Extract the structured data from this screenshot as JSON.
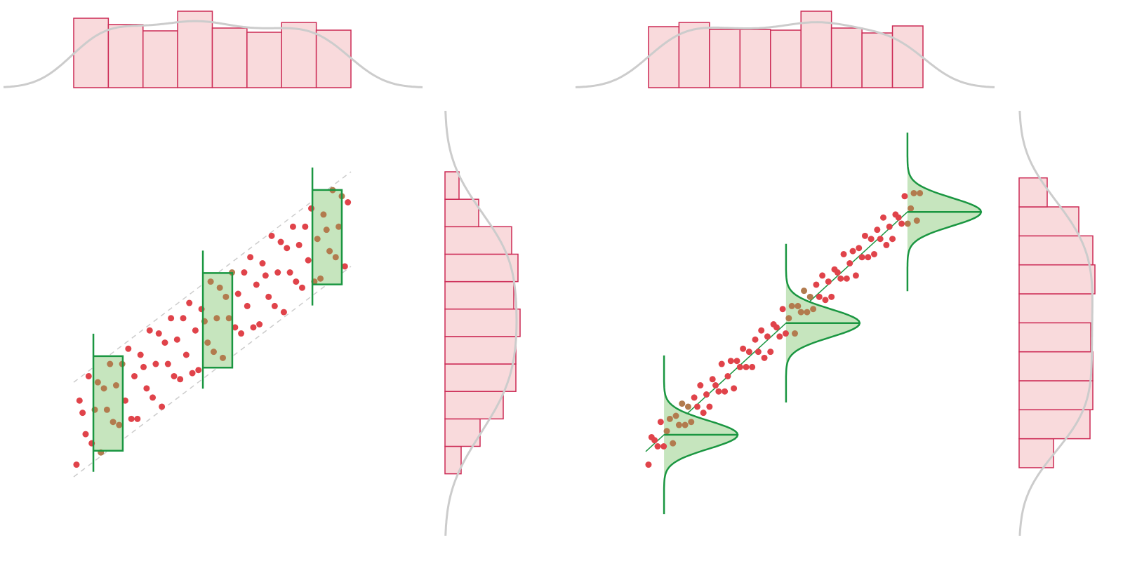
{
  "chart_data": [
    {
      "type": "scatter",
      "distribution": "uniform",
      "xlim": [
        0,
        10
      ],
      "ylim": [
        0,
        10
      ],
      "x": [
        0.1,
        0.21,
        0.32,
        0.43,
        0.54,
        0.65,
        0.76,
        0.87,
        0.98,
        1.09,
        1.2,
        1.31,
        1.42,
        1.53,
        1.64,
        1.75,
        1.86,
        1.97,
        2.08,
        2.19,
        2.3,
        2.41,
        2.52,
        2.63,
        2.74,
        2.85,
        2.96,
        3.07,
        3.18,
        3.29,
        3.4,
        3.51,
        3.62,
        3.73,
        3.84,
        3.95,
        4.06,
        4.17,
        4.28,
        4.39,
        4.5,
        4.61,
        4.72,
        4.83,
        4.94,
        5.05,
        5.16,
        5.27,
        5.38,
        5.49,
        5.6,
        5.71,
        5.82,
        5.93,
        6.04,
        6.15,
        6.26,
        6.37,
        6.48,
        6.59,
        6.7,
        6.81,
        6.92,
        7.03,
        7.14,
        7.25,
        7.36,
        7.47,
        7.58,
        7.69,
        7.8,
        7.91,
        8.02,
        8.13,
        8.24,
        8.35,
        8.46,
        8.57,
        8.68,
        8.79,
        8.9,
        9.01,
        9.12,
        9.23,
        9.34,
        9.45,
        9.56,
        9.67,
        9.78,
        9.89
      ],
      "y": [
        0.4,
        2.5,
        2.1,
        1.4,
        3.3,
        1.1,
        2.2,
        3.1,
        0.8,
        2.9,
        2.2,
        3.7,
        1.8,
        3.0,
        1.7,
        3.7,
        2.5,
        4.2,
        1.9,
        3.3,
        1.9,
        4.0,
        3.6,
        2.9,
        4.8,
        2.6,
        3.7,
        4.7,
        2.3,
        4.4,
        3.7,
        5.2,
        3.3,
        4.5,
        3.2,
        5.2,
        4.0,
        5.7,
        3.4,
        4.8,
        3.5,
        5.5,
        5.1,
        4.4,
        6.4,
        4.1,
        5.2,
        6.2,
        3.9,
        5.9,
        5.2,
        6.7,
        4.9,
        6.0,
        4.7,
        6.7,
        5.6,
        7.2,
        4.9,
        6.3,
        5.0,
        7.0,
        6.6,
        5.9,
        7.9,
        5.6,
        6.7,
        7.7,
        5.4,
        7.5,
        6.7,
        8.2,
        6.4,
        7.6,
        6.2,
        8.2,
        7.1,
        8.8,
        6.4,
        7.8,
        6.5,
        8.6,
        8.1,
        7.4,
        9.4,
        7.2,
        8.2,
        9.2,
        6.9,
        9.0
      ],
      "x_hist": {
        "bins": [
          0,
          1.25,
          2.5,
          3.75,
          5,
          6.25,
          7.5,
          8.75,
          10
        ],
        "counts": [
          99,
          90,
          81,
          109,
          85,
          79,
          93,
          82
        ]
      },
      "y_hist": {
        "bins": [
          0.1,
          1.0,
          1.9,
          2.8,
          3.7,
          4.6,
          5.5,
          6.4,
          7.3,
          8.2,
          9.1,
          10.0
        ],
        "counts": [
          23,
          50,
          83,
          101,
          101,
          107,
          98,
          104,
          95,
          48,
          20
        ]
      },
      "model": {
        "intercept": 1.55,
        "slope": 0.69,
        "spread": 1.55
      },
      "slices": {
        "x": [
          1.24,
          5.19,
          9.14
        ],
        "width": 1.06
      },
      "colors": {
        "points": "#e0434a",
        "highlight": "#b27b4e",
        "hist_fill": "#f9dadc",
        "hist_stroke": "#cc2a55",
        "slice": "#1a9641",
        "slice_fill": "#c6e5be",
        "density": "#cccccc"
      }
    },
    {
      "type": "scatter",
      "distribution": "normal",
      "xlim": [
        0,
        10
      ],
      "ylim": [
        0,
        10
      ],
      "x": [
        0.1,
        0.21,
        0.32,
        0.43,
        0.54,
        0.65,
        0.76,
        0.87,
        0.98,
        1.09,
        1.2,
        1.31,
        1.42,
        1.53,
        1.64,
        1.75,
        1.86,
        1.97,
        2.08,
        2.19,
        2.3,
        2.41,
        2.52,
        2.63,
        2.74,
        2.85,
        2.96,
        3.07,
        3.18,
        3.29,
        3.4,
        3.51,
        3.62,
        3.73,
        3.84,
        3.95,
        4.06,
        4.17,
        4.28,
        4.39,
        4.5,
        4.61,
        4.72,
        4.83,
        4.94,
        5.05,
        5.16,
        5.27,
        5.38,
        5.49,
        5.6,
        5.71,
        5.82,
        5.93,
        6.04,
        6.15,
        6.26,
        6.37,
        6.48,
        6.59,
        6.7,
        6.81,
        6.92,
        7.03,
        7.14,
        7.25,
        7.36,
        7.47,
        7.58,
        7.69,
        7.8,
        7.91,
        8.02,
        8.13,
        8.24,
        8.35,
        8.46,
        8.57,
        8.68,
        8.79,
        8.9,
        9.01,
        9.12,
        9.23,
        9.34,
        9.45,
        9.56,
        9.67,
        9.78,
        9.89
      ],
      "y": [
        0.4,
        1.3,
        1.2,
        1.0,
        1.8,
        1.0,
        1.5,
        1.9,
        1.1,
        2.0,
        1.7,
        2.4,
        1.7,
        2.3,
        1.8,
        2.6,
        2.3,
        3.0,
        2.1,
        2.7,
        2.3,
        3.2,
        3.0,
        2.8,
        3.7,
        2.8,
        3.3,
        3.8,
        2.9,
        3.8,
        3.6,
        4.2,
        3.6,
        4.1,
        3.6,
        4.5,
        4.1,
        4.8,
        3.9,
        4.6,
        4.1,
        5.0,
        4.9,
        4.6,
        5.5,
        4.7,
        5.2,
        5.6,
        4.7,
        5.6,
        5.4,
        6.1,
        5.4,
        5.9,
        5.5,
        6.3,
        5.9,
        6.6,
        5.8,
        6.4,
        5.9,
        6.8,
        6.7,
        6.5,
        7.3,
        6.5,
        7.0,
        7.4,
        6.6,
        7.5,
        7.2,
        7.9,
        7.2,
        7.8,
        7.3,
        8.1,
        7.8,
        8.5,
        7.6,
        8.2,
        7.8,
        8.6,
        8.5,
        8.3,
        9.2,
        8.3,
        8.8,
        9.3,
        8.4,
        9.3
      ],
      "x_hist": {
        "bins": [
          0.1,
          1.2,
          2.3,
          3.4,
          4.5,
          5.6,
          6.7,
          7.8,
          8.9,
          10.0
        ],
        "counts": [
          87,
          93,
          83,
          83,
          82,
          109,
          85,
          78,
          88
        ]
      },
      "y_hist": {
        "bins": [
          0.3,
          1.25,
          2.2,
          3.15,
          4.1,
          5.05,
          6.0,
          6.95,
          7.9,
          8.85,
          9.8
        ],
        "counts": [
          49,
          101,
          105,
          105,
          102,
          104,
          108,
          105,
          85,
          40
        ]
      },
      "model": {
        "intercept": 0.83,
        "slope": 0.832,
        "spread": 0.46
      },
      "slices": {
        "x": [
          0.66,
          5.06,
          9.44
        ],
        "width": 1.0
      },
      "colors": {
        "points": "#e0434a",
        "highlight": "#b27b4e",
        "hist_fill": "#f9dadc",
        "hist_stroke": "#cc2a55",
        "slice": "#1a9641",
        "slice_fill": "#c6e5be",
        "density": "#cccccc"
      }
    }
  ]
}
